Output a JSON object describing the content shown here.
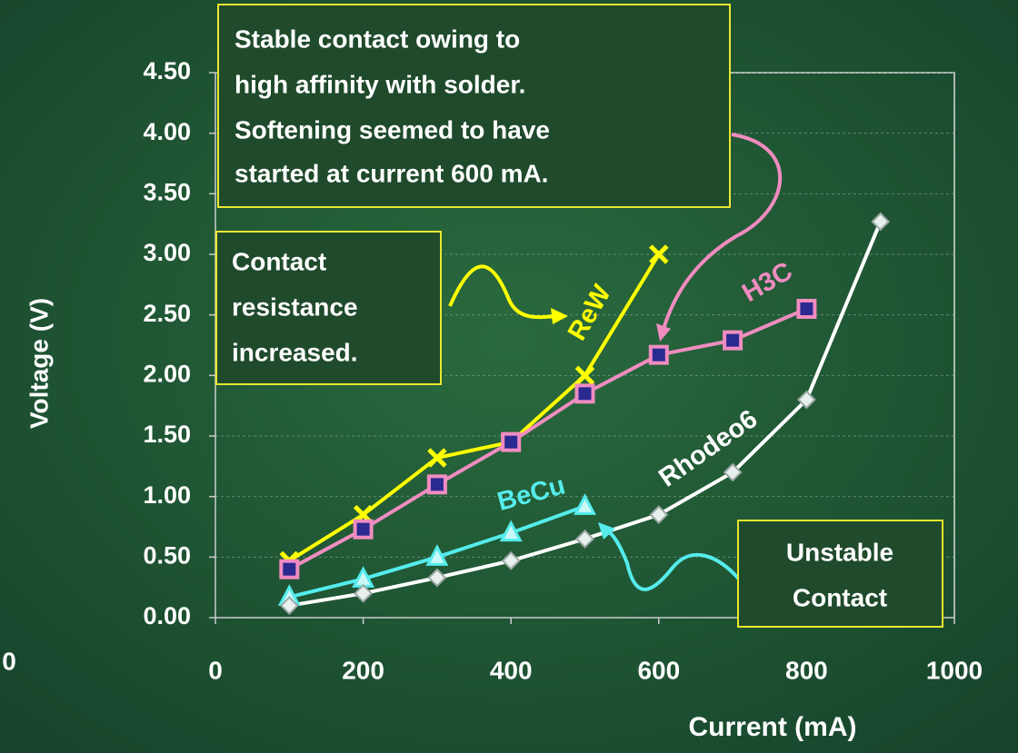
{
  "chart_data": {
    "type": "line",
    "y_label": "Voltage (V)",
    "x_label": "Current (mA)",
    "xlim": [
      0,
      1000
    ],
    "xticks": [
      0,
      200,
      400,
      600,
      800,
      1000
    ],
    "ylim": [
      0,
      4.5
    ],
    "yticks": [
      {
        "value": 0,
        "label": "0.00"
      },
      {
        "value": 0.5,
        "label": "0.50"
      },
      {
        "value": 1,
        "label": "1.00"
      },
      {
        "value": 1.5,
        "label": "1.50"
      },
      {
        "value": 2,
        "label": "2.00"
      },
      {
        "value": 2.5,
        "label": "2.50"
      },
      {
        "value": 3,
        "label": "3.00"
      },
      {
        "value": 3.5,
        "label": "3.50"
      },
      {
        "value": 4,
        "label": "4.00"
      },
      {
        "value": 4.5,
        "label": "4.50"
      }
    ],
    "grid": true,
    "series": [
      {
        "name": "ReW",
        "color": "#ffff00",
        "marker": "x",
        "x": [
          100,
          200,
          300,
          400,
          500,
          600
        ],
        "values": [
          0.47,
          0.85,
          1.32,
          1.45,
          2.0,
          3.0
        ]
      },
      {
        "name": "H3C",
        "color": "#f08cc0",
        "marker": "square",
        "x": [
          100,
          200,
          300,
          400,
          500,
          600,
          700,
          800
        ],
        "values": [
          0.4,
          0.73,
          1.1,
          1.45,
          1.85,
          2.17,
          2.29,
          2.55
        ]
      },
      {
        "name": "BeCu",
        "color": "#55ecec",
        "marker": "triangle",
        "x": [
          100,
          200,
          300,
          400,
          500
        ],
        "values": [
          0.17,
          0.32,
          0.5,
          0.7,
          0.92
        ]
      },
      {
        "name": "Rhodeo6",
        "color": "#ffffff",
        "marker": "diamond",
        "x": [
          100,
          200,
          300,
          400,
          500,
          600,
          700,
          800,
          900
        ],
        "values": [
          0.1,
          0.2,
          0.33,
          0.47,
          0.65,
          0.85,
          1.2,
          1.8,
          3.27
        ]
      }
    ],
    "annotations": [
      {
        "lines": [
          "Stable contact owing to",
          "high affinity with solder.",
          "Softening seemed to have",
          "started at current 600 mA."
        ]
      },
      {
        "lines": [
          "Contact",
          "resistance",
          "increased."
        ]
      },
      {
        "lines": [
          "Unstable",
          "Contact"
        ]
      }
    ],
    "extra_tick_label": "0"
  }
}
